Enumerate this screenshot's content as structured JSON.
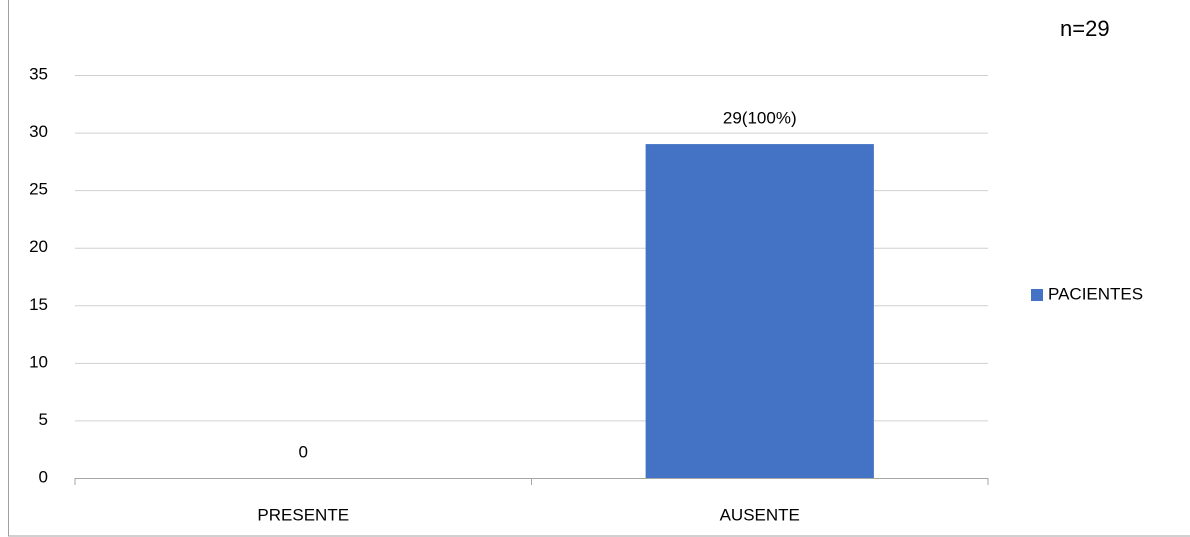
{
  "chart_data": {
    "type": "bar",
    "annotation": "n=29",
    "categories": [
      "PRESENTE",
      "AUSENTE"
    ],
    "series": [
      {
        "name": "PACIENTES",
        "color": "#4472c4",
        "values": [
          0,
          29
        ],
        "value_labels": [
          "0",
          "29(100%)"
        ]
      }
    ],
    "ylim": [
      0,
      35
    ],
    "yticks": [
      0,
      5,
      10,
      15,
      20,
      25,
      30,
      35
    ],
    "grid": true,
    "legend": "right"
  }
}
